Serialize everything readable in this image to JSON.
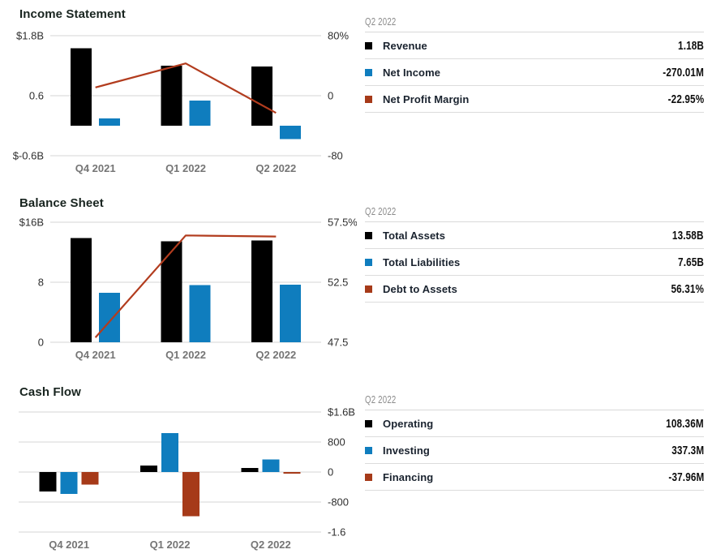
{
  "colors": {
    "black": "#000000",
    "blue": "#0f7dbe",
    "red": "#a63a19",
    "line_red": "#b23c1e"
  },
  "sections": [
    {
      "title": "Income Statement",
      "table": {
        "period": "Q2 2022",
        "rows": [
          {
            "label": "Revenue",
            "value": "1.18B",
            "swatch": "black"
          },
          {
            "label": "Net Income",
            "value": "-270.01M",
            "swatch": "blue"
          },
          {
            "label": "Net Profit Margin",
            "value": "-22.95%",
            "swatch": "red"
          }
        ]
      }
    },
    {
      "title": "Balance Sheet",
      "table": {
        "period": "Q2 2022",
        "rows": [
          {
            "label": "Total Assets",
            "value": "13.58B",
            "swatch": "black"
          },
          {
            "label": "Total Liabilities",
            "value": "7.65B",
            "swatch": "blue"
          },
          {
            "label": "Debt to Assets",
            "value": "56.31%",
            "swatch": "red"
          }
        ]
      }
    },
    {
      "title": "Cash Flow",
      "table": {
        "period": "Q2 2022",
        "rows": [
          {
            "label": "Operating",
            "value": "108.36M",
            "swatch": "black"
          },
          {
            "label": "Investing",
            "value": "337.3M",
            "swatch": "blue"
          },
          {
            "label": "Financing",
            "value": "-37.96M",
            "swatch": "red"
          }
        ]
      }
    }
  ],
  "chart_data": [
    {
      "type": "bar-line",
      "title": "Income Statement",
      "categories": [
        "Q4 2021",
        "Q1 2022",
        "Q2 2022"
      ],
      "bar_axis": "left",
      "bar_unit": "$B",
      "bar_series": [
        {
          "name": "Revenue",
          "color": "black",
          "values": [
            1.55,
            1.2,
            1.18
          ]
        },
        {
          "name": "Net Income",
          "color": "blue",
          "values": [
            0.15,
            0.5,
            -0.27
          ]
        }
      ],
      "line_series": {
        "name": "Net Profit Margin",
        "color": "line_red",
        "unit": "%",
        "values": [
          11,
          43,
          -22.95
        ]
      },
      "left_axis": {
        "min": -0.6,
        "max": 1.8,
        "ticks": [
          {
            "v": 1.8,
            "label": "$1.8B"
          },
          {
            "v": 0.6,
            "label": "0.6"
          },
          {
            "v": -0.6,
            "label": "$-0.6B"
          }
        ]
      },
      "right_axis": {
        "min": -80,
        "max": 80,
        "ticks": [
          {
            "v": 80,
            "label": "80%"
          },
          {
            "v": 0,
            "label": "0"
          },
          {
            "v": -80,
            "label": "-80"
          }
        ]
      }
    },
    {
      "type": "bar-line",
      "title": "Balance Sheet",
      "categories": [
        "Q4 2021",
        "Q1 2022",
        "Q2 2022"
      ],
      "bar_axis": "left",
      "bar_unit": "$B",
      "bar_series": [
        {
          "name": "Total Assets",
          "color": "black",
          "values": [
            13.9,
            13.45,
            13.58
          ]
        },
        {
          "name": "Total Liabilities",
          "color": "blue",
          "values": [
            6.6,
            7.6,
            7.65
          ]
        }
      ],
      "line_series": {
        "name": "Debt to Assets",
        "color": "line_red",
        "unit": "%",
        "values": [
          47.9,
          56.4,
          56.31
        ]
      },
      "left_axis": {
        "min": 0,
        "max": 16,
        "ticks": [
          {
            "v": 16,
            "label": "$16B"
          },
          {
            "v": 8,
            "label": "8"
          },
          {
            "v": 0,
            "label": "0"
          }
        ]
      },
      "right_axis": {
        "min": 47.5,
        "max": 57.5,
        "ticks": [
          {
            "v": 57.5,
            "label": "57.5%"
          },
          {
            "v": 52.5,
            "label": "52.5"
          },
          {
            "v": 47.5,
            "label": "47.5"
          }
        ]
      }
    },
    {
      "type": "bar",
      "title": "Cash Flow",
      "categories": [
        "Q4 2021",
        "Q1 2022",
        "Q2 2022"
      ],
      "bar_axis": "right",
      "bar_unit": "$M",
      "bar_series": [
        {
          "name": "Operating",
          "color": "black",
          "values": [
            -520,
            170,
            108.36
          ]
        },
        {
          "name": "Investing",
          "color": "blue",
          "values": [
            -580,
            1040,
            337.3
          ]
        },
        {
          "name": "Financing",
          "color": "red",
          "values": [
            -330,
            -1180,
            -37.96
          ]
        }
      ],
      "right_axis": {
        "min": -1600,
        "max": 1600,
        "ticks": [
          {
            "v": 1600,
            "label": "$1.6B"
          },
          {
            "v": 800,
            "label": "800"
          },
          {
            "v": 0,
            "label": "0"
          },
          {
            "v": -800,
            "label": "-800"
          },
          {
            "v": -1600,
            "label": "-1.6"
          }
        ]
      }
    }
  ]
}
